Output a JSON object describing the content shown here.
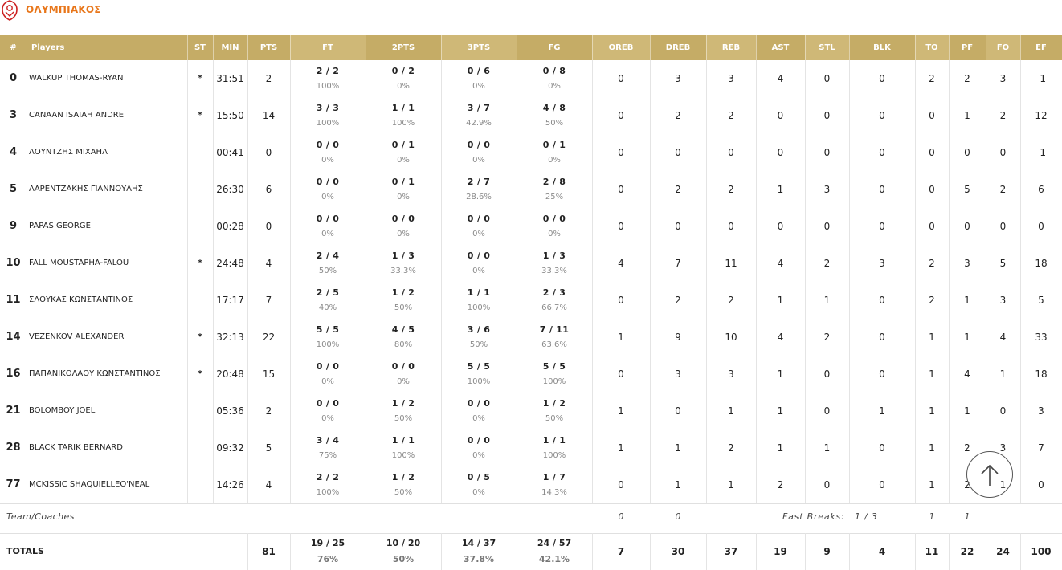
{
  "team": {
    "name": "ΟΛΥΜΠΙΑΚΟΣ",
    "accent_color": "#e8761a",
    "header_color": "#c5ac66"
  },
  "columns": [
    {
      "key": "num",
      "label": "#"
    },
    {
      "key": "name",
      "label": "Players"
    },
    {
      "key": "st",
      "label": "ST"
    },
    {
      "key": "min",
      "label": "MIN"
    },
    {
      "key": "pts",
      "label": "PTS"
    },
    {
      "key": "ft",
      "label": "FT"
    },
    {
      "key": "p2",
      "label": "2PTS"
    },
    {
      "key": "p3",
      "label": "3PTS"
    },
    {
      "key": "fg",
      "label": "FG"
    },
    {
      "key": "oreb",
      "label": "OREB"
    },
    {
      "key": "dreb",
      "label": "DREB"
    },
    {
      "key": "reb",
      "label": "REB"
    },
    {
      "key": "ast",
      "label": "AST"
    },
    {
      "key": "stl",
      "label": "STL"
    },
    {
      "key": "blk",
      "label": "BLK"
    },
    {
      "key": "to",
      "label": "TO"
    },
    {
      "key": "pf",
      "label": "PF"
    },
    {
      "key": "fo",
      "label": "FO"
    },
    {
      "key": "ef",
      "label": "EF"
    }
  ],
  "players": [
    {
      "num": "0",
      "name": "WALKUP THOMAS-RYAN",
      "st": "*",
      "min": "31:51",
      "pts": "2",
      "ft": "2 / 2",
      "ft_pct": "100%",
      "p2": "0 / 2",
      "p2_pct": "0%",
      "p3": "0 / 6",
      "p3_pct": "0%",
      "fg": "0 / 8",
      "fg_pct": "0%",
      "oreb": "0",
      "dreb": "3",
      "reb": "3",
      "ast": "4",
      "stl": "0",
      "blk": "0",
      "to": "2",
      "pf": "2",
      "fo": "3",
      "ef": "-1"
    },
    {
      "num": "3",
      "name": "CANAAN ISAIAH ANDRE",
      "st": "*",
      "min": "15:50",
      "pts": "14",
      "ft": "3 / 3",
      "ft_pct": "100%",
      "p2": "1 / 1",
      "p2_pct": "100%",
      "p3": "3 / 7",
      "p3_pct": "42.9%",
      "fg": "4 / 8",
      "fg_pct": "50%",
      "oreb": "0",
      "dreb": "2",
      "reb": "2",
      "ast": "0",
      "stl": "0",
      "blk": "0",
      "to": "0",
      "pf": "1",
      "fo": "2",
      "ef": "12"
    },
    {
      "num": "4",
      "name": "ΛΟΥΝΤΖΗΣ ΜΙΧΑΗΛ",
      "st": "",
      "min": "00:41",
      "pts": "0",
      "ft": "0 / 0",
      "ft_pct": "0%",
      "p2": "0 / 1",
      "p2_pct": "0%",
      "p3": "0 / 0",
      "p3_pct": "0%",
      "fg": "0 / 1",
      "fg_pct": "0%",
      "oreb": "0",
      "dreb": "0",
      "reb": "0",
      "ast": "0",
      "stl": "0",
      "blk": "0",
      "to": "0",
      "pf": "0",
      "fo": "0",
      "ef": "-1"
    },
    {
      "num": "5",
      "name": "ΛΑΡΕΝΤΖΑΚΗΣ ΓΙΑΝΝΟΥΛΗΣ",
      "st": "",
      "min": "26:30",
      "pts": "6",
      "ft": "0 / 0",
      "ft_pct": "0%",
      "p2": "0 / 1",
      "p2_pct": "0%",
      "p3": "2 / 7",
      "p3_pct": "28.6%",
      "fg": "2 / 8",
      "fg_pct": "25%",
      "oreb": "0",
      "dreb": "2",
      "reb": "2",
      "ast": "1",
      "stl": "3",
      "blk": "0",
      "to": "0",
      "pf": "5",
      "fo": "2",
      "ef": "6"
    },
    {
      "num": "9",
      "name": "PAPAS GEORGE",
      "st": "",
      "min": "00:28",
      "pts": "0",
      "ft": "0 / 0",
      "ft_pct": "0%",
      "p2": "0 / 0",
      "p2_pct": "0%",
      "p3": "0 / 0",
      "p3_pct": "0%",
      "fg": "0 / 0",
      "fg_pct": "0%",
      "oreb": "0",
      "dreb": "0",
      "reb": "0",
      "ast": "0",
      "stl": "0",
      "blk": "0",
      "to": "0",
      "pf": "0",
      "fo": "0",
      "ef": "0"
    },
    {
      "num": "10",
      "name": "FALL MOUSTAPHA-FALOU",
      "st": "*",
      "min": "24:48",
      "pts": "4",
      "ft": "2 / 4",
      "ft_pct": "50%",
      "p2": "1 / 3",
      "p2_pct": "33.3%",
      "p3": "0 / 0",
      "p3_pct": "0%",
      "fg": "1 / 3",
      "fg_pct": "33.3%",
      "oreb": "4",
      "dreb": "7",
      "reb": "11",
      "ast": "4",
      "stl": "2",
      "blk": "3",
      "to": "2",
      "pf": "3",
      "fo": "5",
      "ef": "18"
    },
    {
      "num": "11",
      "name": "ΣΛΟΥΚΑΣ ΚΩΝΣΤΑΝΤΙΝΟΣ",
      "st": "",
      "min": "17:17",
      "pts": "7",
      "ft": "2 / 5",
      "ft_pct": "40%",
      "p2": "1 / 2",
      "p2_pct": "50%",
      "p3": "1 / 1",
      "p3_pct": "100%",
      "fg": "2 / 3",
      "fg_pct": "66.7%",
      "oreb": "0",
      "dreb": "2",
      "reb": "2",
      "ast": "1",
      "stl": "1",
      "blk": "0",
      "to": "2",
      "pf": "1",
      "fo": "3",
      "ef": "5"
    },
    {
      "num": "14",
      "name": "VEZENKOV ALEXANDER",
      "st": "*",
      "min": "32:13",
      "pts": "22",
      "ft": "5 / 5",
      "ft_pct": "100%",
      "p2": "4 / 5",
      "p2_pct": "80%",
      "p3": "3 / 6",
      "p3_pct": "50%",
      "fg": "7 / 11",
      "fg_pct": "63.6%",
      "oreb": "1",
      "dreb": "9",
      "reb": "10",
      "ast": "4",
      "stl": "2",
      "blk": "0",
      "to": "1",
      "pf": "1",
      "fo": "4",
      "ef": "33"
    },
    {
      "num": "16",
      "name": "ΠΑΠΑΝΙΚΟΛΑΟΥ ΚΩΝΣΤΑΝΤΙΝΟΣ",
      "st": "*",
      "min": "20:48",
      "pts": "15",
      "ft": "0 / 0",
      "ft_pct": "0%",
      "p2": "0 / 0",
      "p2_pct": "0%",
      "p3": "5 / 5",
      "p3_pct": "100%",
      "fg": "5 / 5",
      "fg_pct": "100%",
      "oreb": "0",
      "dreb": "3",
      "reb": "3",
      "ast": "1",
      "stl": "0",
      "blk": "0",
      "to": "1",
      "pf": "4",
      "fo": "1",
      "ef": "18"
    },
    {
      "num": "21",
      "name": "BOLOMBOY JOEL",
      "st": "",
      "min": "05:36",
      "pts": "2",
      "ft": "0 / 0",
      "ft_pct": "0%",
      "p2": "1 / 2",
      "p2_pct": "50%",
      "p3": "0 / 0",
      "p3_pct": "0%",
      "fg": "1 / 2",
      "fg_pct": "50%",
      "oreb": "1",
      "dreb": "0",
      "reb": "1",
      "ast": "1",
      "stl": "0",
      "blk": "1",
      "to": "1",
      "pf": "1",
      "fo": "0",
      "ef": "3"
    },
    {
      "num": "28",
      "name": "BLACK TARIK BERNARD",
      "st": "",
      "min": "09:32",
      "pts": "5",
      "ft": "3 / 4",
      "ft_pct": "75%",
      "p2": "1 / 1",
      "p2_pct": "100%",
      "p3": "0 / 0",
      "p3_pct": "0%",
      "fg": "1 / 1",
      "fg_pct": "100%",
      "oreb": "1",
      "dreb": "1",
      "reb": "2",
      "ast": "1",
      "stl": "1",
      "blk": "0",
      "to": "1",
      "pf": "2",
      "fo": "3",
      "ef": "7"
    },
    {
      "num": "77",
      "name": "MCKISSIC SHAQUIELLEO'NEAL",
      "st": "",
      "min": "14:26",
      "pts": "4",
      "ft": "2 / 2",
      "ft_pct": "100%",
      "p2": "1 / 2",
      "p2_pct": "50%",
      "p3": "0 / 5",
      "p3_pct": "0%",
      "fg": "1 / 7",
      "fg_pct": "14.3%",
      "oreb": "0",
      "dreb": "1",
      "reb": "1",
      "ast": "2",
      "stl": "0",
      "blk": "0",
      "to": "1",
      "pf": "2",
      "fo": "1",
      "ef": "0"
    }
  ],
  "team_row": {
    "label": "Team/Coaches",
    "oreb": "0",
    "dreb": "0",
    "fast_breaks_label": "Fast Breaks:",
    "fast_breaks_value": "1 / 3",
    "to": "1",
    "pf": "1"
  },
  "totals": {
    "label": "TOTALS",
    "pts": "81",
    "ft": "19 / 25",
    "ft_pct": "76%",
    "p2": "10 / 20",
    "p2_pct": "50%",
    "p3": "14 / 37",
    "p3_pct": "37.8%",
    "fg": "24 / 57",
    "fg_pct": "42.1%",
    "oreb": "7",
    "dreb": "30",
    "reb": "37",
    "ast": "19",
    "stl": "9",
    "blk": "4",
    "to": "11",
    "pf": "22",
    "fo": "24",
    "ef": "100"
  },
  "icons": {
    "logo": "olympiacos-logo-icon",
    "scroll_top": "arrow-up-icon"
  }
}
